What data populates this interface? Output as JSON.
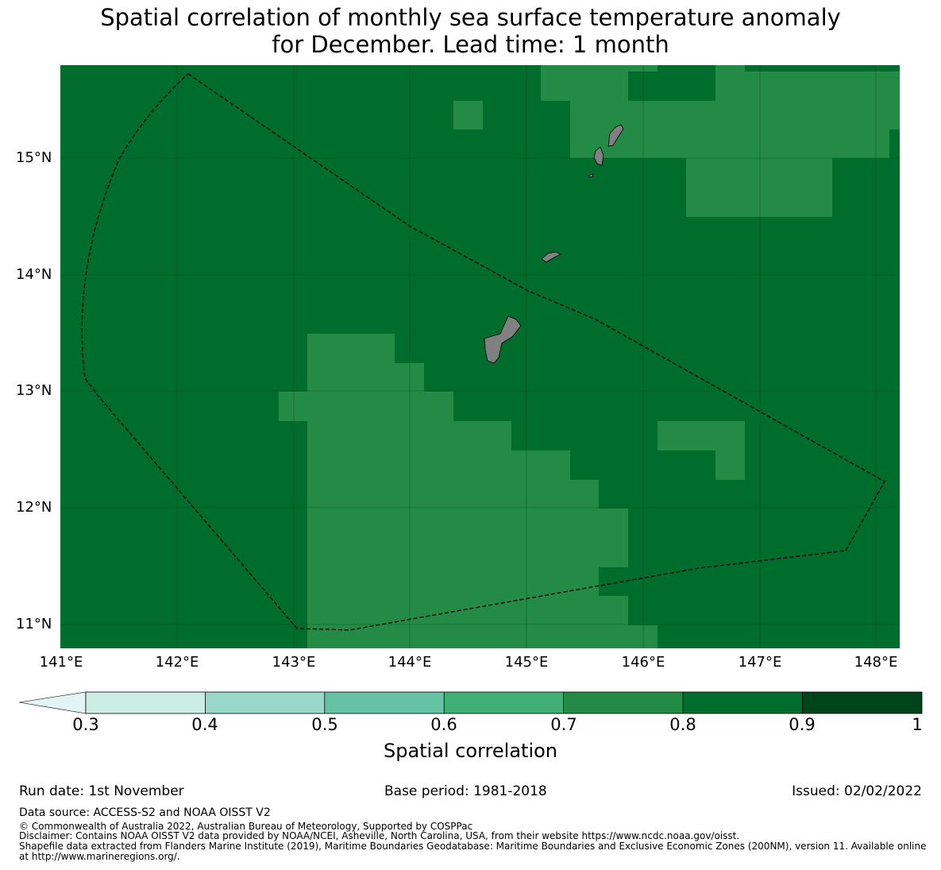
{
  "title": {
    "line1": "Spatial correlation of monthly sea surface temperature anomaly",
    "line2": "for December. Lead time: 1 month"
  },
  "map": {
    "lat_labels": [
      "15°N",
      "14°N",
      "13°N",
      "12°N",
      "11°N"
    ],
    "lon_labels": [
      "141°E",
      "142°E",
      "143°E",
      "144°E",
      "145°E",
      "146°E",
      "147°E",
      "148°E"
    ],
    "background_class": "0.8-0.9",
    "land_color": "#808080",
    "eez_boundary_style": "dashed black line"
  },
  "colorbar": {
    "ticks": [
      "0.3",
      "0.4",
      "0.5",
      "0.6",
      "0.7",
      "0.8",
      "0.9",
      "1"
    ],
    "label": "Spatial correlation",
    "colors": [
      "#e3f4f6",
      "#ccece6",
      "#99d8c9",
      "#66c2a4",
      "#41ae76",
      "#238b45",
      "#006d2c",
      "#00441b"
    ],
    "extend": "min"
  },
  "chart_data": {
    "type": "heatmap",
    "classes": [
      {
        "range": [
          0.7,
          0.8
        ],
        "color": "#238b45"
      },
      {
        "range": [
          0.8,
          0.9
        ],
        "color": "#006d2c"
      }
    ],
    "lat_range": [
      10.8,
      15.8
    ],
    "lon_range": [
      141.0,
      148.2
    ],
    "dominant_class": [
      0.8,
      0.9
    ]
  },
  "footer": {
    "run_date": "Run date: 1st November",
    "base_period": "Base period: 1981-2018",
    "issued": "Issued: 02/02/2022",
    "data_source": "Data source: ACCESS-S2 and NOAA OISST V2",
    "copyright": "© Commonwealth of Australia 2022, Australian Bureau of Meteorology, Supported by COSPPac",
    "disclaimer": "Disclaimer: Contains NOAA OISST V2 data provided by NOAA/NCEI, Asheville, North Carolina, USA, from their website https://www.ncdc.noaa.gov/oisst.",
    "shapefile": "Shapefile data extracted from Flanders Marine Institute (2019), Maritime Boundaries Geodatabase: Maritime Boundaries and Exclusive Economic Zones (200NM), version 11. Available online at http://www.marineregions.org/."
  }
}
